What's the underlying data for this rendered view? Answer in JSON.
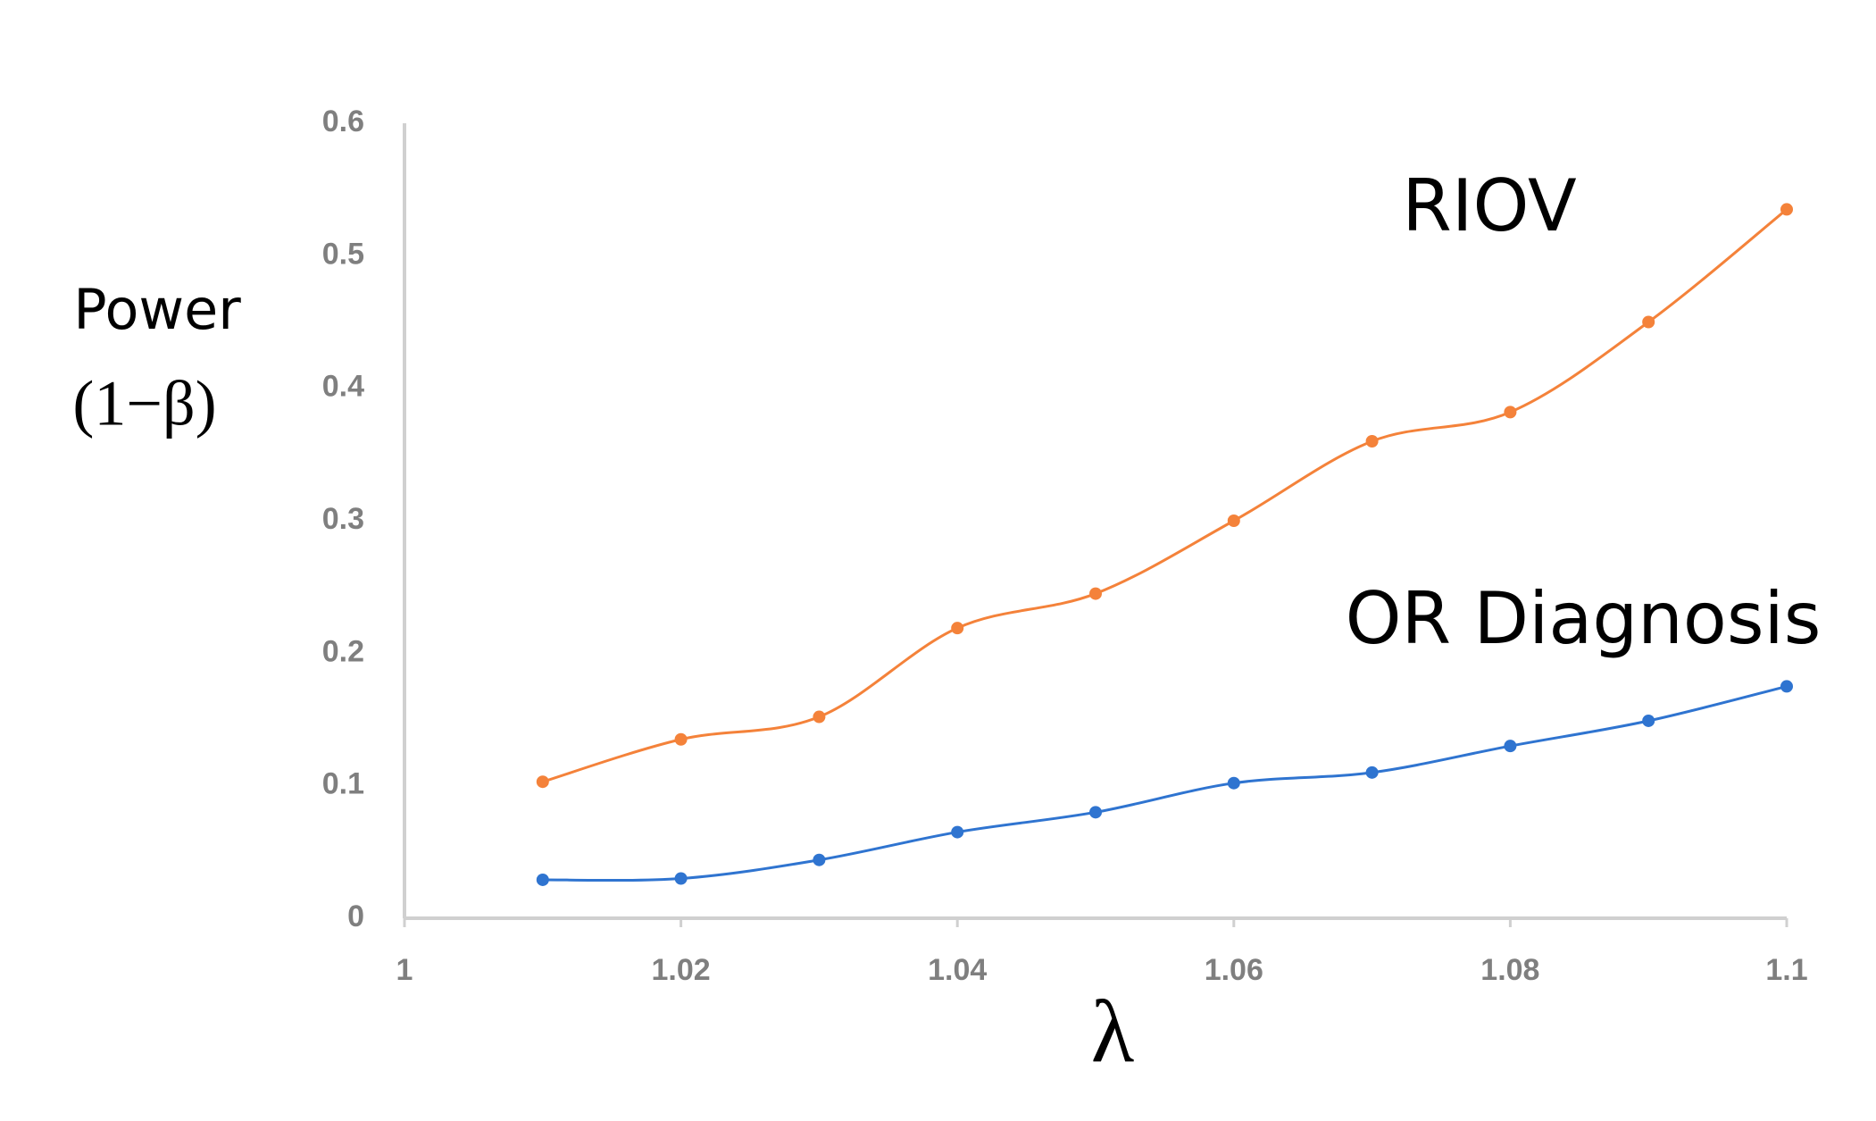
{
  "chart_data": {
    "type": "line",
    "ylabel": [
      "Power",
      "(1−β)"
    ],
    "xlabel": "λ",
    "x": [
      1.01,
      1.02,
      1.03,
      1.04,
      1.05,
      1.06,
      1.07,
      1.08,
      1.09,
      1.1
    ],
    "series": [
      {
        "name": "RIOV",
        "color": "#f4823a",
        "values": [
          0.103,
          0.135,
          0.152,
          0.219,
          0.245,
          0.3,
          0.36,
          0.382,
          0.45,
          0.535
        ]
      },
      {
        "name": "OR Diagnosis",
        "color": "#2f74d0",
        "values": [
          0.029,
          0.03,
          0.044,
          0.065,
          0.08,
          0.102,
          0.11,
          0.13,
          0.149,
          0.175
        ]
      }
    ],
    "xlim": [
      1,
      1.1
    ],
    "xticks": [
      1,
      1.02,
      1.04,
      1.06,
      1.08,
      1.1
    ],
    "ylim": [
      0,
      0.6
    ],
    "yticks": [
      0,
      0.1,
      0.2,
      0.3,
      0.4,
      0.5,
      0.6
    ],
    "grid": false
  }
}
